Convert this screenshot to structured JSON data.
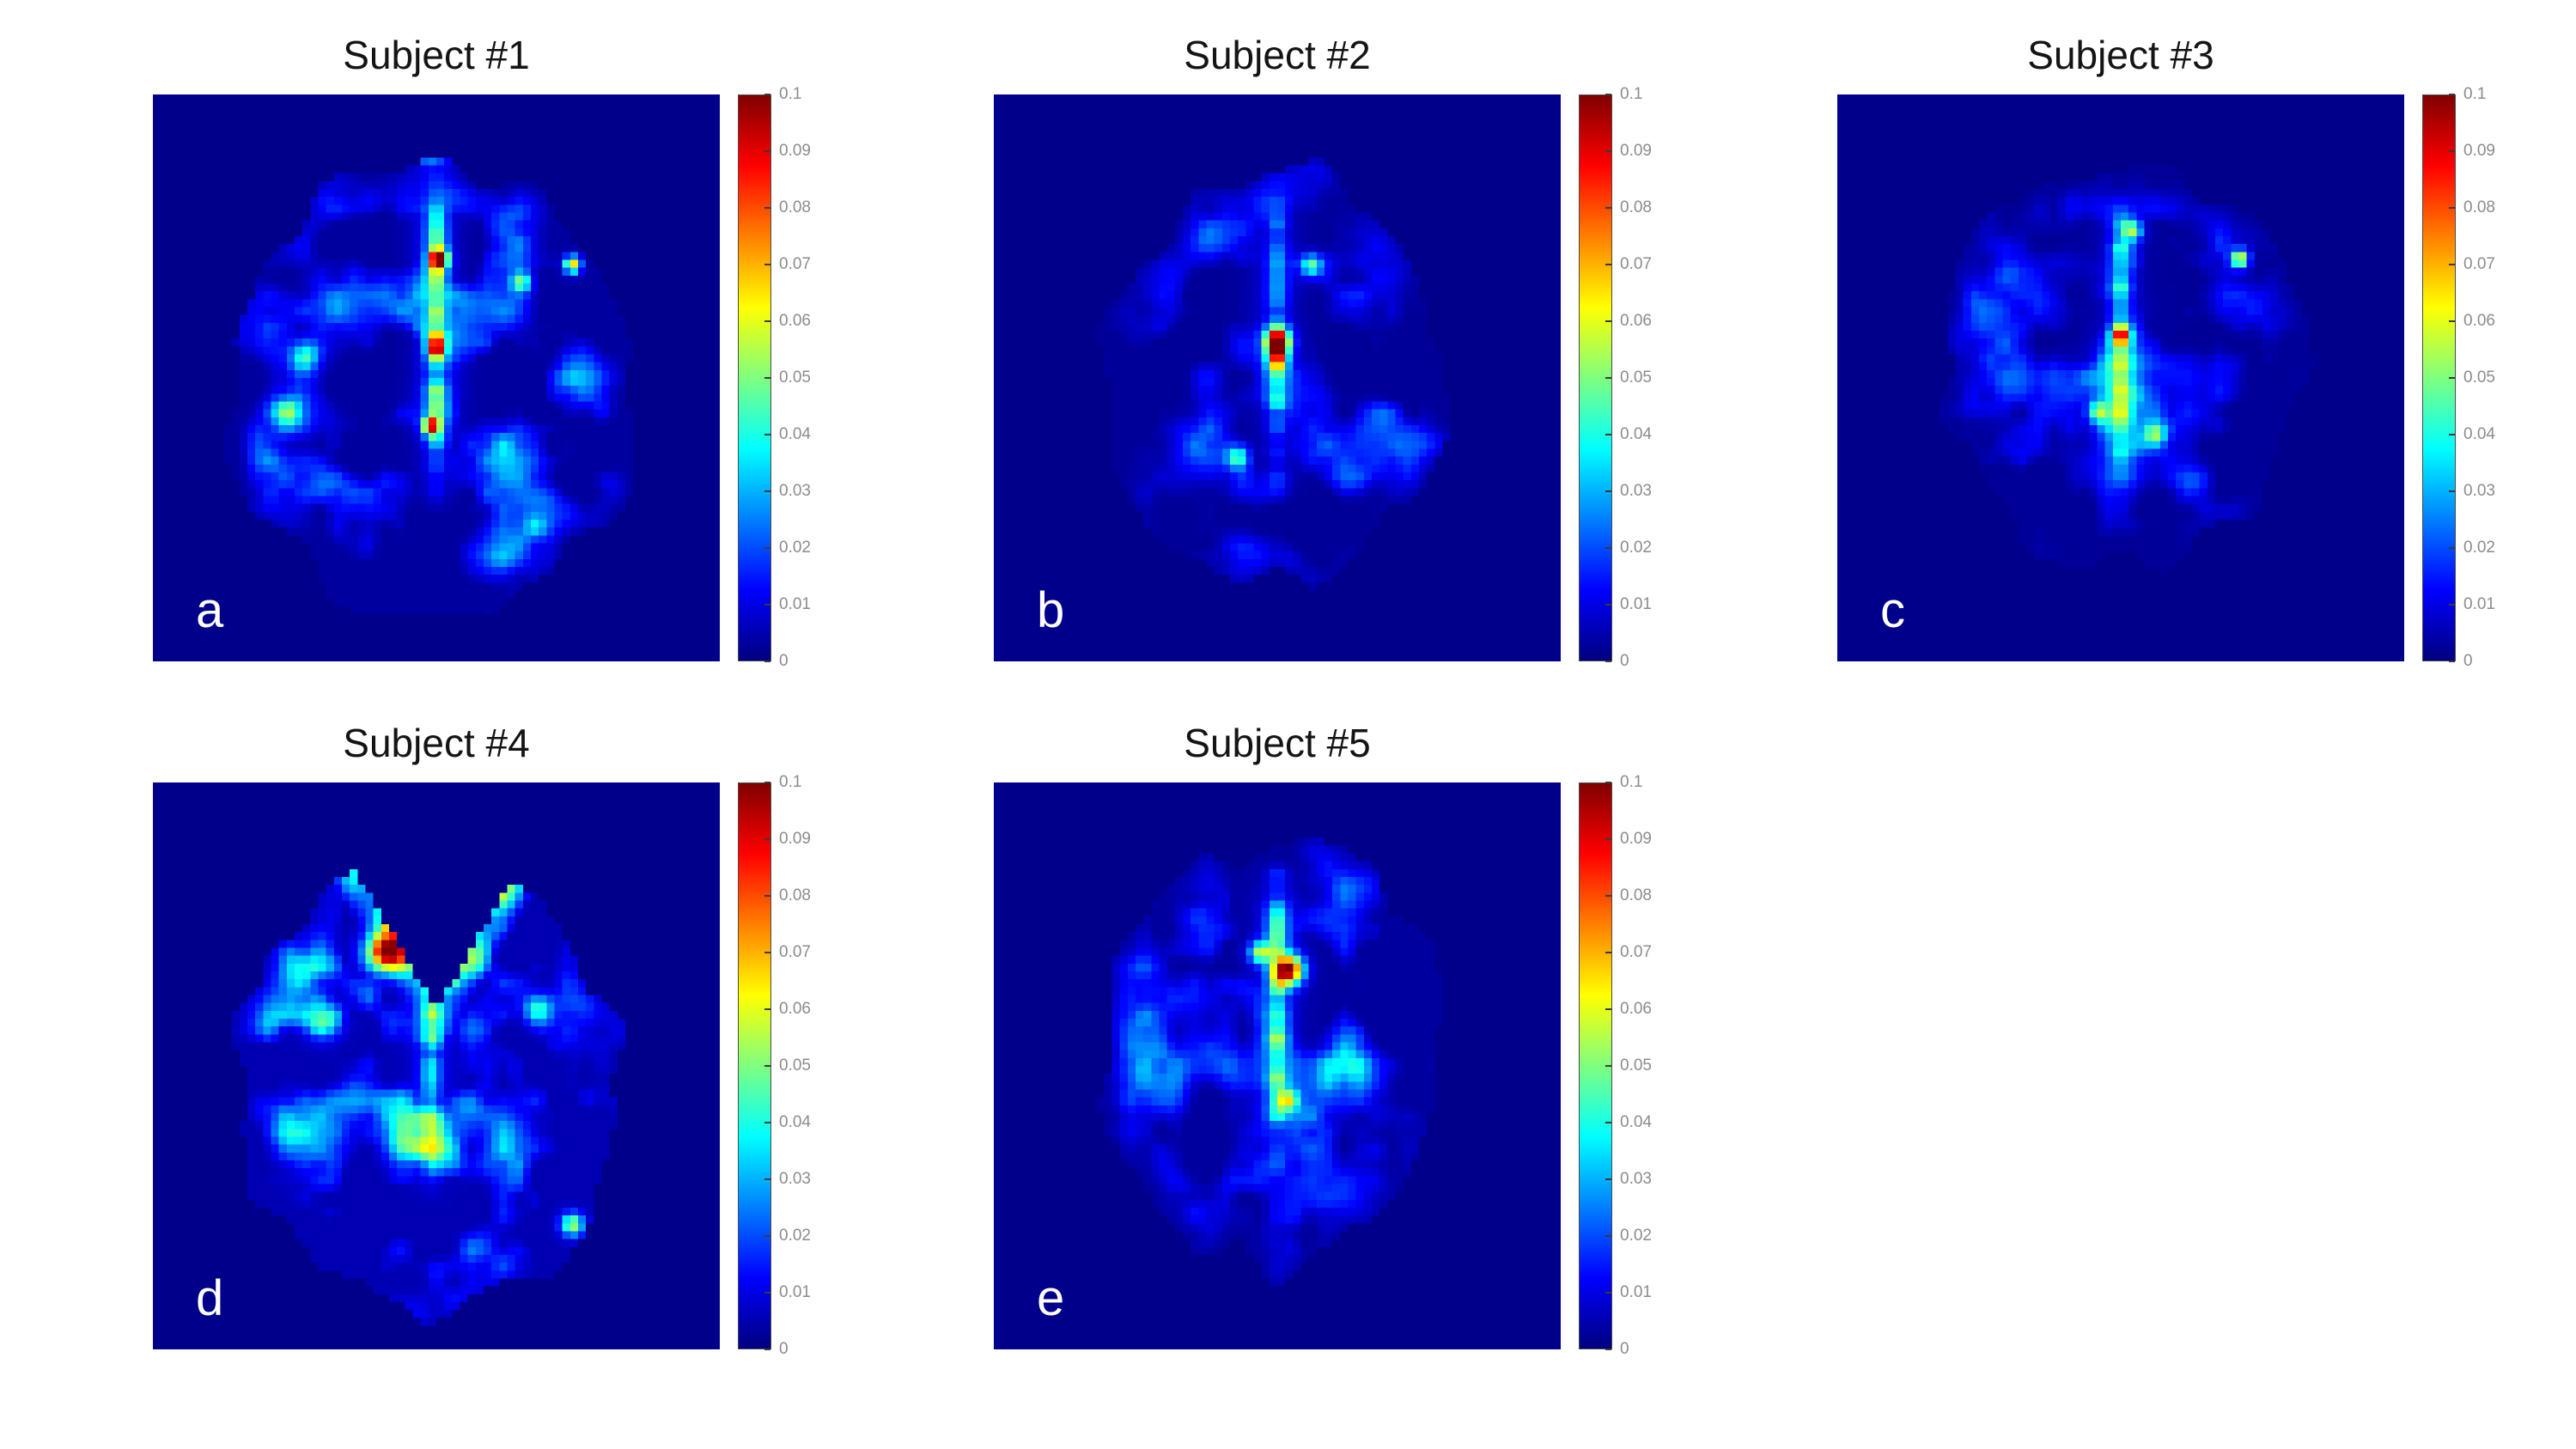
{
  "figure": {
    "background_color": "#ffffff",
    "image_background_color": "#000080"
  },
  "colorbar": {
    "colormap": "jet",
    "ticks": [
      "0.1",
      "0.09",
      "0.08",
      "0.07",
      "0.06",
      "0.05",
      "0.04",
      "0.03",
      "0.02",
      "0.01",
      "0"
    ],
    "stops_bottom_to_top": [
      "#000080",
      "#0000ff",
      "#00ffff",
      "#ffff00",
      "#ff0000",
      "#800000"
    ]
  },
  "chart_data": {
    "type": "heatmap",
    "colormap": "jet",
    "zlim": [
      0,
      0.1
    ],
    "colorbar_ticks": [
      0.1,
      0.09,
      0.08,
      0.07,
      0.06,
      0.05,
      0.04,
      0.03,
      0.02,
      0.01,
      0
    ],
    "panels": [
      {
        "title": "Subject #1",
        "letter": "a",
        "description": "Axial brain map, mostly low blue/cyan speckle with red-orange hotspots at the superior frontal rim and along the anterior midline",
        "render": {
          "seed": 101,
          "cx": 0.5,
          "cy": 0.52,
          "rx": 0.355,
          "ry": 0.4,
          "base": 0.003,
          "amp": 0.5,
          "midline": 0.05,
          "hotspots": [
            [
              0.49,
              0.08,
              0.03,
              0.095
            ],
            [
              0.58,
              0.095,
              0.022,
              0.07
            ],
            [
              0.42,
              0.1,
              0.02,
              0.05
            ],
            [
              0.505,
              0.29,
              0.016,
              0.075
            ],
            [
              0.5,
              0.45,
              0.016,
              0.06
            ],
            [
              0.49,
              0.585,
              0.015,
              0.065
            ],
            [
              0.27,
              0.46,
              0.028,
              0.035
            ],
            [
              0.24,
              0.56,
              0.03,
              0.035
            ],
            [
              0.74,
              0.3,
              0.015,
              0.065
            ],
            [
              0.65,
              0.33,
              0.018,
              0.04
            ]
          ]
        }
      },
      {
        "title": "Subject #2",
        "letter": "b",
        "description": "Smaller dim brain map with faint midline streak and a single strong red hotspot near the center",
        "render": {
          "seed": 102,
          "cx": 0.5,
          "cy": 0.5,
          "rx": 0.3,
          "ry": 0.36,
          "base": 0.0025,
          "amp": 0.34,
          "midline": 0.035,
          "hotspots": [
            [
              0.5,
              0.435,
              0.022,
              0.095
            ],
            [
              0.5,
              0.47,
              0.018,
              0.05
            ],
            [
              0.43,
              0.64,
              0.02,
              0.04
            ],
            [
              0.56,
              0.3,
              0.018,
              0.04
            ]
          ]
        }
      },
      {
        "title": "Subject #3",
        "letter": "c",
        "description": "Dim speckled brain map with green-yellow dots along the midline and a small yellow spot on the right side",
        "render": {
          "seed": 103,
          "cx": 0.5,
          "cy": 0.48,
          "rx": 0.32,
          "ry": 0.345,
          "base": 0.0025,
          "amp": 0.38,
          "midline": 0.038,
          "hotspots": [
            [
              0.71,
              0.29,
              0.016,
              0.06
            ],
            [
              0.52,
              0.24,
              0.018,
              0.045
            ],
            [
              0.5,
              0.42,
              0.015,
              0.045
            ],
            [
              0.46,
              0.56,
              0.018,
              0.04
            ],
            [
              0.56,
              0.6,
              0.02,
              0.035
            ]
          ]
        }
      },
      {
        "title": "Subject #4",
        "letter": "d",
        "description": "Bright brain map with a V-shaped dark notch between the frontal lobes, red/orange hotspots lining the notch and widespread cyan-green speckle",
        "render": {
          "seed": 104,
          "cx": 0.49,
          "cy": 0.53,
          "rx": 0.335,
          "ry": 0.405,
          "base": 0.005,
          "amp": 0.62,
          "midline": 0.03,
          "notch": true,
          "notch_x": 0.5,
          "notch_depth": 0.4,
          "notch_slope": 1.7,
          "notch_glow": 0.05,
          "hotspots": [
            [
              0.41,
              0.3,
              0.035,
              0.085
            ],
            [
              0.43,
              0.24,
              0.025,
              0.06
            ],
            [
              0.56,
              0.16,
              0.03,
              0.075
            ],
            [
              0.6,
              0.12,
              0.028,
              0.08
            ],
            [
              0.52,
              0.34,
              0.02,
              0.05
            ],
            [
              0.3,
              0.42,
              0.03,
              0.04
            ],
            [
              0.68,
              0.4,
              0.025,
              0.035
            ],
            [
              0.74,
              0.78,
              0.02,
              0.05
            ]
          ]
        }
      },
      {
        "title": "Subject #5",
        "letter": "e",
        "description": "Moderate brain map with cyan midline streak and a red-orange hotspot just above center",
        "render": {
          "seed": 105,
          "cx": 0.5,
          "cy": 0.48,
          "rx": 0.295,
          "ry": 0.375,
          "base": 0.003,
          "amp": 0.42,
          "midline": 0.042,
          "hotspots": [
            [
              0.52,
              0.33,
              0.026,
              0.09
            ],
            [
              0.47,
              0.3,
              0.02,
              0.05
            ],
            [
              0.52,
              0.56,
              0.018,
              0.04
            ]
          ]
        }
      }
    ]
  }
}
